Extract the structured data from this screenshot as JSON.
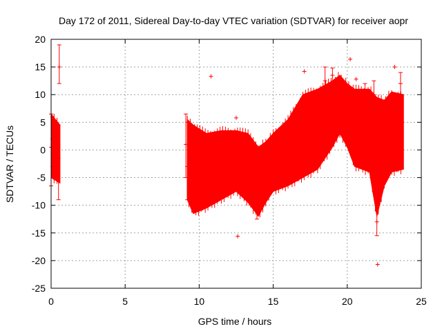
{
  "chart_data": {
    "type": "scatter",
    "title": "Day 172 of 2011, Sidereal Day-to-day VTEC variation (SDTVAR) for receiver aopr",
    "xlabel": "GPS time / hours",
    "ylabel": "SDTVAR / TECUs",
    "xlim": [
      0,
      25
    ],
    "ylim": [
      -25,
      20
    ],
    "x_ticks": [
      0,
      5,
      10,
      15,
      20,
      25
    ],
    "y_ticks": [
      -25,
      -20,
      -15,
      -10,
      -5,
      0,
      5,
      10,
      15,
      20
    ],
    "grid": true,
    "series": [
      {
        "name": "SDTVAR",
        "color": "#ff0000",
        "marker": "+",
        "error_bars": true,
        "envelope": [
          {
            "t": 0.0,
            "lo": -5.0,
            "hi": 6.5
          },
          {
            "t": 0.6,
            "lo": -6.0,
            "hi": 4.5
          },
          {
            "t": 9.2,
            "lo": -9.0,
            "hi": 5.5
          },
          {
            "t": 9.6,
            "lo": -11.5,
            "hi": 4.5
          },
          {
            "t": 10.5,
            "lo": -10.5,
            "hi": 3.0
          },
          {
            "t": 11.5,
            "lo": -9.0,
            "hi": 3.5
          },
          {
            "t": 12.5,
            "lo": -7.5,
            "hi": 3.5
          },
          {
            "t": 13.3,
            "lo": -9.5,
            "hi": 3.0
          },
          {
            "t": 14.0,
            "lo": -12.0,
            "hi": 0.5
          },
          {
            "t": 14.5,
            "lo": -9.5,
            "hi": 1.5
          },
          {
            "t": 15.0,
            "lo": -7.5,
            "hi": 3.0
          },
          {
            "t": 16.0,
            "lo": -6.5,
            "hi": 5.5
          },
          {
            "t": 17.0,
            "lo": -5.0,
            "hi": 10.0
          },
          {
            "t": 18.0,
            "lo": -3.5,
            "hi": 11.0
          },
          {
            "t": 19.0,
            "lo": 0.5,
            "hi": 12.5
          },
          {
            "t": 19.5,
            "lo": 3.0,
            "hi": 13.5
          },
          {
            "t": 20.0,
            "lo": 0.5,
            "hi": 12.0
          },
          {
            "t": 20.5,
            "lo": -3.0,
            "hi": 11.0
          },
          {
            "t": 21.5,
            "lo": -4.0,
            "hi": 11.0
          },
          {
            "t": 22.0,
            "lo": -12.0,
            "hi": 9.5
          },
          {
            "t": 22.5,
            "lo": -6.5,
            "hi": 9.0
          },
          {
            "t": 23.0,
            "lo": -4.0,
            "hi": 10.5
          },
          {
            "t": 23.8,
            "lo": -3.5,
            "hi": 10.0
          }
        ],
        "points": [
          {
            "x": 0.0,
            "y": 0.5,
            "lo": -6.5,
            "hi": 6.5
          },
          {
            "x": 0.1,
            "y": 2.0,
            "lo": -3.0,
            "hi": 6.0
          },
          {
            "x": 0.2,
            "y": -1.0,
            "lo": -5.0,
            "hi": 4.0
          },
          {
            "x": 0.5,
            "y": -1.5,
            "lo": -9.0,
            "hi": 4.5
          },
          {
            "x": 0.55,
            "y": 15.0,
            "lo": 12.0,
            "hi": 19.0
          },
          {
            "x": 9.1,
            "y": 1.0,
            "lo": -5.0,
            "hi": 6.5
          },
          {
            "x": 9.2,
            "y": -3.0,
            "lo": -9.0,
            "hi": 5.0
          },
          {
            "x": 10.8,
            "y": 13.3,
            "lo": 13.3,
            "hi": 13.3
          },
          {
            "x": 12.5,
            "y": 5.8,
            "lo": 5.8,
            "hi": 5.8
          },
          {
            "x": 12.6,
            "y": -15.6,
            "lo": -15.6,
            "hi": -15.6
          },
          {
            "x": 13.9,
            "y": -11.0,
            "lo": -12.5,
            "hi": -9.0
          },
          {
            "x": 17.1,
            "y": 14.2,
            "lo": 14.2,
            "hi": 14.2
          },
          {
            "x": 18.5,
            "y": 12.5,
            "lo": 10.0,
            "hi": 15.0
          },
          {
            "x": 19.0,
            "y": 13.5,
            "lo": 12.0,
            "hi": 14.8
          },
          {
            "x": 20.2,
            "y": 16.4,
            "lo": 16.4,
            "hi": 16.4
          },
          {
            "x": 20.6,
            "y": 12.8,
            "lo": 12.8,
            "hi": 12.8
          },
          {
            "x": 20.8,
            "y": 5.0,
            "lo": 2.0,
            "hi": 7.5
          },
          {
            "x": 21.2,
            "y": 9.0,
            "lo": 6.0,
            "hi": 12.0
          },
          {
            "x": 21.8,
            "y": 10.0,
            "lo": 8.0,
            "hi": 12.5
          },
          {
            "x": 22.0,
            "y": -13.0,
            "lo": -15.5,
            "hi": -11.0
          },
          {
            "x": 22.05,
            "y": -20.7,
            "lo": -20.7,
            "hi": -20.7
          },
          {
            "x": 23.2,
            "y": 15.0,
            "lo": 15.0,
            "hi": 15.0
          },
          {
            "x": 23.6,
            "y": 12.0,
            "lo": 9.0,
            "hi": 14.0
          }
        ]
      }
    ]
  }
}
